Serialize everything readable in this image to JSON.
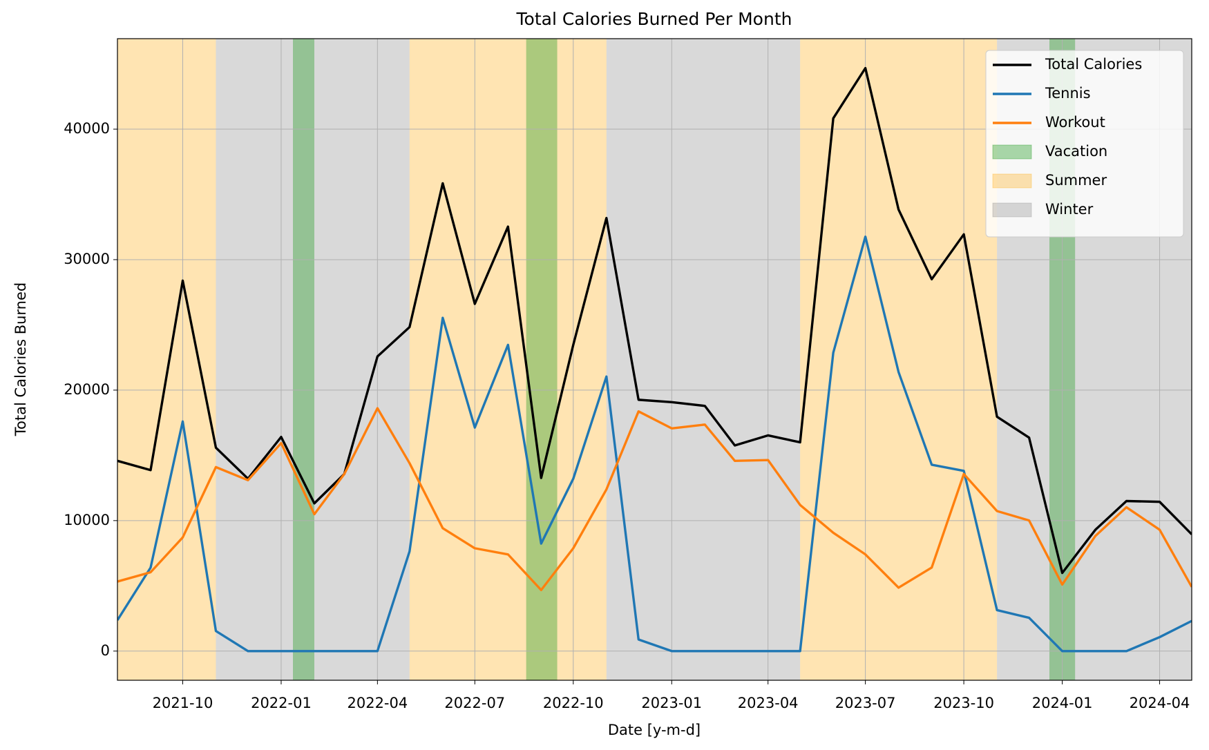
{
  "chart_data": {
    "type": "line",
    "title": "Total Calories Burned Per Month",
    "xlabel": "Date [y-m-d]",
    "ylabel": "Total Calories Burned",
    "x": [
      "2021-08",
      "2021-09",
      "2021-10",
      "2021-11",
      "2021-12",
      "2022-01",
      "2022-02",
      "2022-03",
      "2022-04",
      "2022-05",
      "2022-06",
      "2022-07",
      "2022-08",
      "2022-09",
      "2022-10",
      "2022-11",
      "2022-12",
      "2023-01",
      "2023-02",
      "2023-03",
      "2023-04",
      "2023-05",
      "2023-06",
      "2023-07",
      "2023-08",
      "2023-09",
      "2023-10",
      "2023-11",
      "2023-12",
      "2024-01",
      "2024-02",
      "2024-03",
      "2024-04",
      "2024-05"
    ],
    "series": [
      {
        "name": "Total Calories",
        "color": "#000000",
        "values": [
          14580,
          13870,
          28390,
          15590,
          13210,
          16410,
          11320,
          13570,
          22580,
          24830,
          35850,
          26610,
          32530,
          13270,
          23470,
          33190,
          19260,
          19080,
          18790,
          15760,
          16530,
          16000,
          40830,
          44680,
          33840,
          28500,
          31940,
          17960,
          16360,
          5990,
          9300,
          11500,
          11440,
          8950
        ]
      },
      {
        "name": "Tennis",
        "color": "#1f77b4",
        "values": [
          2370,
          6400,
          17600,
          1540,
          0,
          0,
          0,
          0,
          0,
          7640,
          25540,
          17130,
          23470,
          8240,
          13210,
          21040,
          890,
          0,
          0,
          0,
          0,
          0,
          22870,
          31760,
          21390,
          14280,
          13810,
          3140,
          2550,
          0,
          0,
          0,
          1070,
          2310
        ]
      },
      {
        "name": "Workout",
        "color": "#ff7f0e",
        "values": [
          5330,
          6040,
          8710,
          14100,
          13100,
          15940,
          10490,
          13570,
          18610,
          14400,
          9420,
          7880,
          7410,
          4680,
          7880,
          12390,
          18370,
          17070,
          17360,
          14580,
          14640,
          11200,
          9070,
          7410,
          4860,
          6400,
          13570,
          10730,
          10010,
          5100,
          8830,
          11020,
          9300,
          4920
        ]
      }
    ],
    "spans": [
      {
        "name": "Vacation",
        "color": "#2ca02c",
        "opacity": 0.4,
        "ranges": [
          [
            "2022-01-12",
            "2022-02-01"
          ],
          [
            "2022-08-18",
            "2022-09-16"
          ],
          [
            "2023-12-20",
            "2024-01-13"
          ]
        ]
      },
      {
        "name": "Summer",
        "color": "#ffa500",
        "opacity": 0.3,
        "ranges": [
          [
            "2021-08",
            "2021-11"
          ],
          [
            "2022-05",
            "2022-11"
          ],
          [
            "2023-05",
            "2023-11"
          ]
        ]
      },
      {
        "name": "Winter",
        "color": "#808080",
        "opacity": 0.3,
        "ranges": [
          [
            "2021-11",
            "2022-05"
          ],
          [
            "2022-11",
            "2023-05"
          ],
          [
            "2023-11",
            "2024-05"
          ]
        ]
      }
    ],
    "xlim": [
      "2021-08",
      "2024-05"
    ],
    "xticks": [
      "2021-10",
      "2022-01",
      "2022-04",
      "2022-07",
      "2022-10",
      "2023-01",
      "2023-04",
      "2023-07",
      "2023-10",
      "2024-01",
      "2024-04"
    ],
    "ylim": [
      -2235,
      46935
    ],
    "yticks": [
      0,
      10000,
      20000,
      30000,
      40000
    ],
    "grid": true,
    "legend": "upper right"
  }
}
